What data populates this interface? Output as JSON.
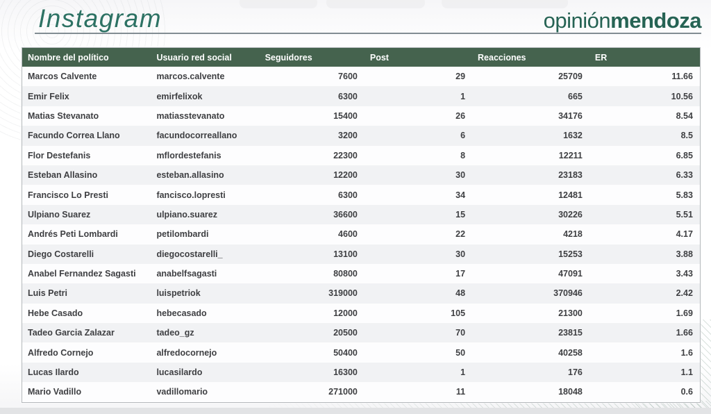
{
  "header": {
    "title": "Instagram",
    "brand_normal": "opinión",
    "brand_bold": "mendoza"
  },
  "chart_data": {
    "type": "table",
    "title": "Instagram",
    "columns": [
      "Nombre del político",
      "Usuario red social",
      "Seguidores",
      "Post",
      "Reacciones",
      "ER"
    ],
    "rows": [
      [
        "Marcos Calvente",
        "marcos.calvente",
        "7600",
        "29",
        "25709",
        "11.66"
      ],
      [
        "Emir Felix",
        "emirfelixok",
        "6300",
        "1",
        "665",
        "10.56"
      ],
      [
        "Matias Stevanato",
        "matiasstevanato",
        "15400",
        "26",
        "34176",
        "8.54"
      ],
      [
        "Facundo Correa Llano",
        "facundocorreallano",
        "3200",
        "6",
        "1632",
        "8.5"
      ],
      [
        "Flor Destefanis",
        "mflordestefanis",
        "22300",
        "8",
        "12211",
        "6.85"
      ],
      [
        "Esteban Allasino",
        "esteban.allasino",
        "12200",
        "30",
        "23183",
        "6.33"
      ],
      [
        "Francisco Lo Presti",
        "fancisco.lopresti",
        "6300",
        "34",
        "12481",
        "5.83"
      ],
      [
        "Ulpiano Suarez",
        "ulpiano.suarez",
        "36600",
        "15",
        "30226",
        "5.51"
      ],
      [
        "Andrés Peti Lombardi",
        "petilombardi",
        "4600",
        "22",
        "4218",
        "4.17"
      ],
      [
        "Diego Costarelli",
        "diegocostarelli_",
        "13100",
        "30",
        "15253",
        "3.88"
      ],
      [
        "Anabel Fernandez Sagasti",
        "anabelfsagasti",
        "80800",
        "17",
        "47091",
        "3.43"
      ],
      [
        "Luis Petri",
        "luispetriok",
        "319000",
        "48",
        "370946",
        "2.42"
      ],
      [
        "Hebe Casado",
        "hebecasado",
        "12000",
        "105",
        "21300",
        "1.69"
      ],
      [
        "Tadeo Garcia Zalazar",
        "tadeo_gz",
        "20500",
        "70",
        "23815",
        "1.66"
      ],
      [
        "Alfredo Cornejo",
        "alfredocornejo",
        "50400",
        "50",
        "40258",
        "1.6"
      ],
      [
        "Lucas Ilardo",
        "lucasilardo",
        "16300",
        "1",
        "176",
        "1.1"
      ],
      [
        "Mario Vadillo",
        "vadillomario",
        "271000",
        "11",
        "18048",
        "0.6"
      ]
    ],
    "column_keys": [
      "nombre",
      "usuario",
      "seguidores",
      "post",
      "reacciones",
      "er"
    ],
    "numeric_columns": [
      2,
      3,
      4,
      5
    ]
  },
  "colors": {
    "table_header_bg": "#45634e",
    "title_green": "#2d7264",
    "brand_green": "#266354",
    "row_alt_bg": "#f1f2f4",
    "cell_text": "#3e3f42",
    "rule_gray": "#828d93",
    "bottom_bar": "#e2e3e5"
  }
}
